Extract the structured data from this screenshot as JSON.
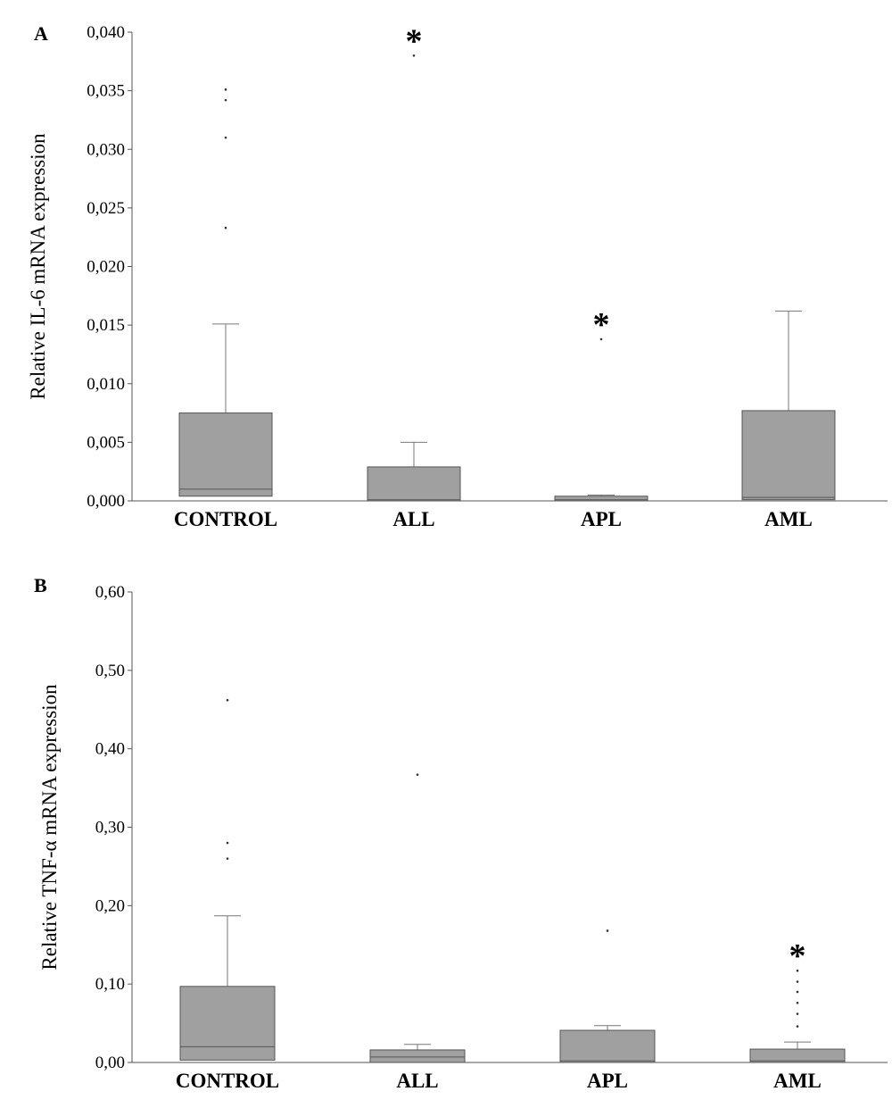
{
  "chart_data": [
    {
      "type": "box",
      "panel_label": "A",
      "ylabel": "Relative IL-6 mRNA expression",
      "ylim": [
        0,
        0.04
      ],
      "ytick_values": [
        0,
        0.005,
        0.01,
        0.015,
        0.02,
        0.025,
        0.03,
        0.035,
        0.04
      ],
      "ytick_labels": [
        "0,000",
        "0,005",
        "0,010",
        "0,015",
        "0,020",
        "0,025",
        "0,030",
        "0,035",
        "0,040"
      ],
      "categories": [
        "CONTROL",
        "ALL",
        "APL",
        "AML"
      ],
      "boxes": [
        {
          "min": 0.0,
          "q1": 0.0004,
          "median": 0.001,
          "q3": 0.0075,
          "max": 0.0151,
          "outliers": [
            0.0233,
            0.031,
            0.0342,
            0.0351
          ],
          "significant": false
        },
        {
          "min": 0.0,
          "q1": 0.0,
          "median": 0.0001,
          "q3": 0.0029,
          "max": 0.005,
          "outliers": [
            0.038
          ],
          "significant": true
        },
        {
          "min": 0.0,
          "q1": 0.0,
          "median": 0.0001,
          "q3": 0.0004,
          "max": 0.0005,
          "outliers": [
            0.0138
          ],
          "significant": true
        },
        {
          "min": 0.0,
          "q1": 0.0001,
          "median": 0.0003,
          "q3": 0.0077,
          "max": 0.0162,
          "outliers": [],
          "significant": false
        }
      ],
      "significance_symbol": "*"
    },
    {
      "type": "box",
      "panel_label": "B",
      "ylabel": "Relative TNF-α mRNA expression",
      "ylim": [
        0,
        0.6
      ],
      "ytick_values": [
        0,
        0.1,
        0.2,
        0.3,
        0.4,
        0.5,
        0.6
      ],
      "ytick_labels": [
        "0,00",
        "0,10",
        "0,20",
        "0,30",
        "0,40",
        "0,50",
        "0,60"
      ],
      "categories": [
        "CONTROL",
        "ALL",
        "APL",
        "AML"
      ],
      "boxes": [
        {
          "min": 0.0,
          "q1": 0.003,
          "median": 0.02,
          "q3": 0.097,
          "max": 0.187,
          "outliers": [
            0.26,
            0.28,
            0.462
          ],
          "significant": false
        },
        {
          "min": 0.0,
          "q1": 0.0,
          "median": 0.007,
          "q3": 0.016,
          "max": 0.023,
          "outliers": [
            0.367
          ],
          "significant": false
        },
        {
          "min": 0.0,
          "q1": 0.0,
          "median": 0.002,
          "q3": 0.041,
          "max": 0.047,
          "outliers": [
            0.168
          ],
          "significant": false
        },
        {
          "min": 0.0,
          "q1": 0.0,
          "median": 0.002,
          "q3": 0.017,
          "max": 0.026,
          "outliers": [
            0.046,
            0.062,
            0.076,
            0.09,
            0.103,
            0.117
          ],
          "significant": true
        }
      ],
      "significance_symbol": "*"
    }
  ]
}
